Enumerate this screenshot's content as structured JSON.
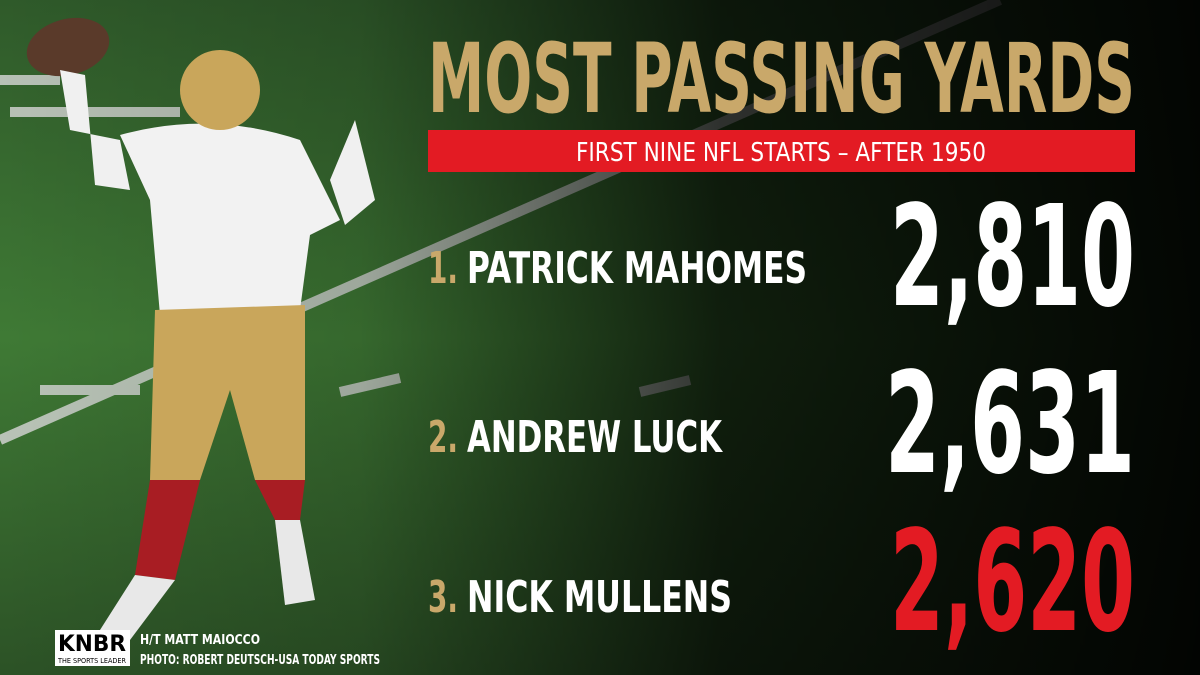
{
  "header": {
    "title": "MOST PASSING YARDS",
    "subtitle": "FIRST NINE NFL STARTS – AFTER 1950"
  },
  "rankings": [
    {
      "rank": "1.",
      "name": "PATRICK MAHOMES",
      "yards": "2,810"
    },
    {
      "rank": "2.",
      "name": "ANDREW LUCK",
      "yards": "2,631"
    },
    {
      "rank": "3.",
      "name": "NICK MULLENS",
      "yards": "2,620"
    }
  ],
  "footer": {
    "logo": "KNBR",
    "logo_tagline": "THE SPORTS LEADER",
    "credit": "H/T MATT MAIOCCO",
    "photo_credit": "PHOTO: ROBERT DEUTSCH-USA TODAY SPORTS"
  }
}
